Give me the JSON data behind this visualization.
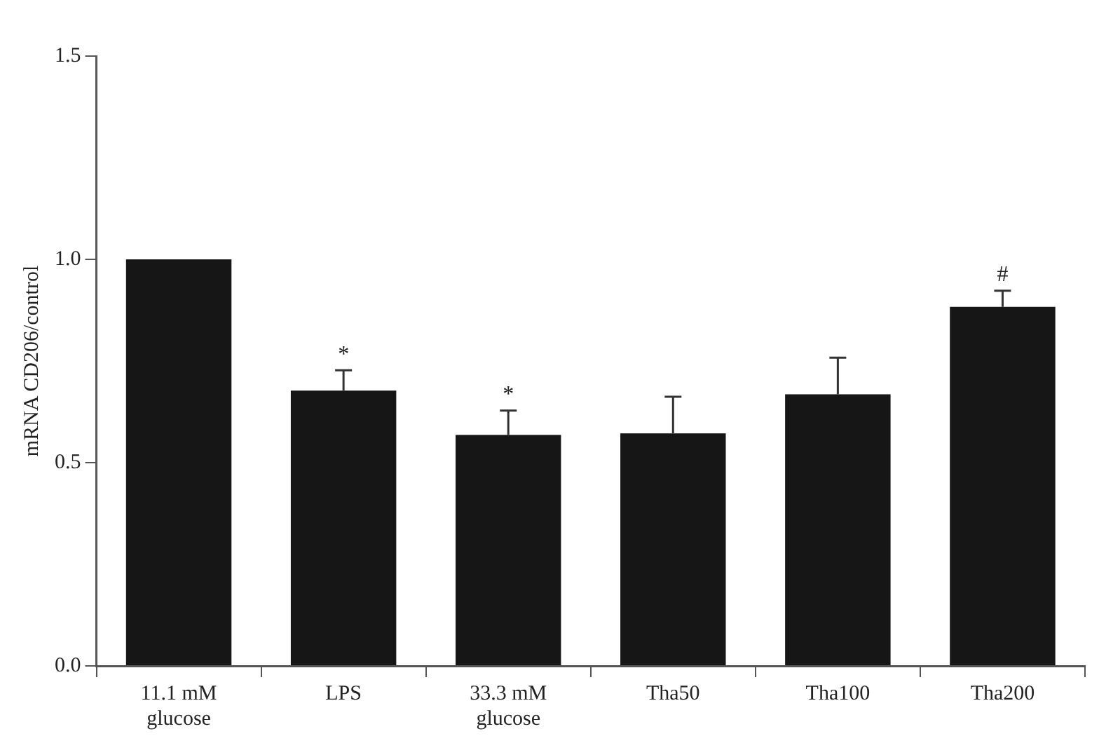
{
  "chart_data": {
    "type": "bar",
    "ylabel": "mRNA CD206/control",
    "categories": [
      "11.1 mM\nglucose",
      "LPS",
      "33.3 mM\nglucose",
      "Tha50",
      "Tha100",
      "Tha200"
    ],
    "values": [
      1.0,
      0.677,
      0.568,
      0.572,
      0.668,
      0.883
    ],
    "errors": [
      null,
      0.05,
      0.06,
      0.09,
      0.09,
      0.04
    ],
    "color": "#161616",
    "ylim": [
      0,
      1.5
    ],
    "yticks": [
      {
        "value": 0,
        "label": "0.0"
      },
      {
        "value": 0.5,
        "label": "0.5"
      },
      {
        "value": 1,
        "label": "1.0"
      },
      {
        "value": 1.5,
        "label": "1.5"
      }
    ],
    "annotations": [
      {
        "text": "*",
        "x": "LPS",
        "y": 0.727
      },
      {
        "text": "*",
        "x": "33.3 mM\nglucose",
        "y": 0.628
      },
      {
        "text": "#",
        "x": "Tha200",
        "y": 0.923
      }
    ],
    "grid": false,
    "legend": false
  }
}
